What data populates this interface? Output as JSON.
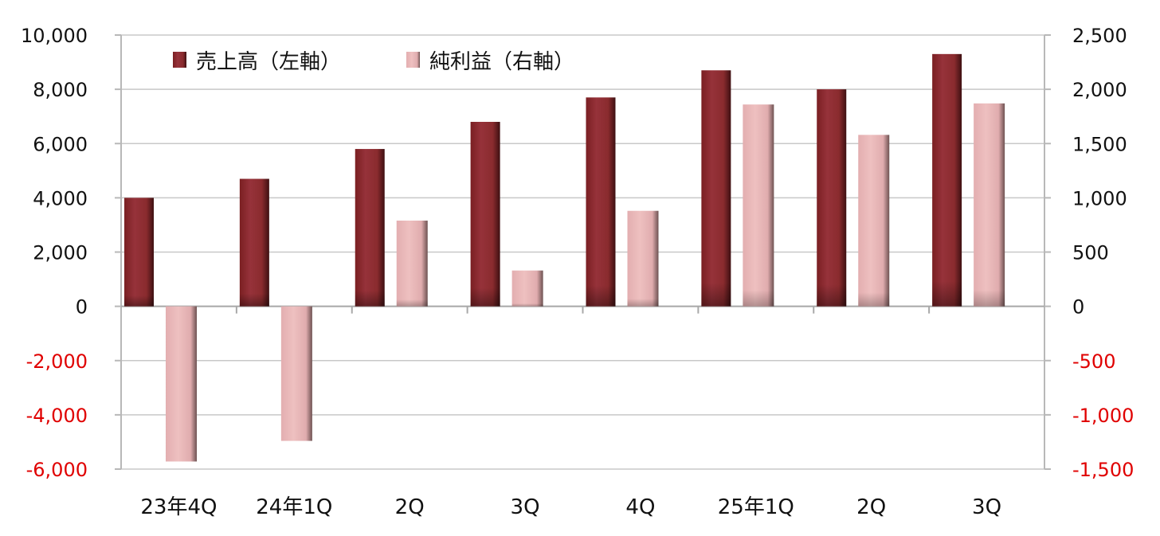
{
  "chart_data": {
    "type": "bar",
    "categories": [
      "23年4Q",
      "24年1Q",
      "2Q",
      "3Q",
      "4Q",
      "25年1Q",
      "2Q",
      "3Q"
    ],
    "series": [
      {
        "name": "売上高（左軸）",
        "axis": "left",
        "color": "#8B2A2C",
        "values": [
          4000,
          4700,
          5800,
          6800,
          7700,
          8700,
          8000,
          9300
        ]
      },
      {
        "name": "純利益（右軸）",
        "axis": "right",
        "color": "#E8B6B6",
        "values": [
          -1430,
          -1240,
          790,
          330,
          880,
          1860,
          1580,
          1870
        ]
      }
    ],
    "y_left": {
      "range": [
        -6000,
        10000
      ],
      "ticks": [
        {
          "value": 10000,
          "label": "10,000"
        },
        {
          "value": 8000,
          "label": "8,000"
        },
        {
          "value": 6000,
          "label": "6,000"
        },
        {
          "value": 4000,
          "label": "4,000"
        },
        {
          "value": 2000,
          "label": "2,000"
        },
        {
          "value": 0,
          "label": "0"
        },
        {
          "value": -2000,
          "label": "-2,000"
        },
        {
          "value": -4000,
          "label": "-4,000"
        },
        {
          "value": -6000,
          "label": "-6,000"
        }
      ]
    },
    "y_right": {
      "range": [
        -1500,
        2500
      ],
      "ticks": [
        {
          "value": 2500,
          "label": "2,500"
        },
        {
          "value": 2000,
          "label": "2,000"
        },
        {
          "value": 1500,
          "label": "1,500"
        },
        {
          "value": 1000,
          "label": "1,000"
        },
        {
          "value": 500,
          "label": "500"
        },
        {
          "value": 0,
          "label": "0"
        },
        {
          "value": -500,
          "label": "-500"
        },
        {
          "value": -1000,
          "label": "-1,000"
        },
        {
          "value": -1500,
          "label": "-1,500"
        }
      ]
    },
    "negative_tick_color": "#E00000",
    "positive_tick_color": "#111111",
    "grid": true,
    "legend_position": "top-left"
  }
}
